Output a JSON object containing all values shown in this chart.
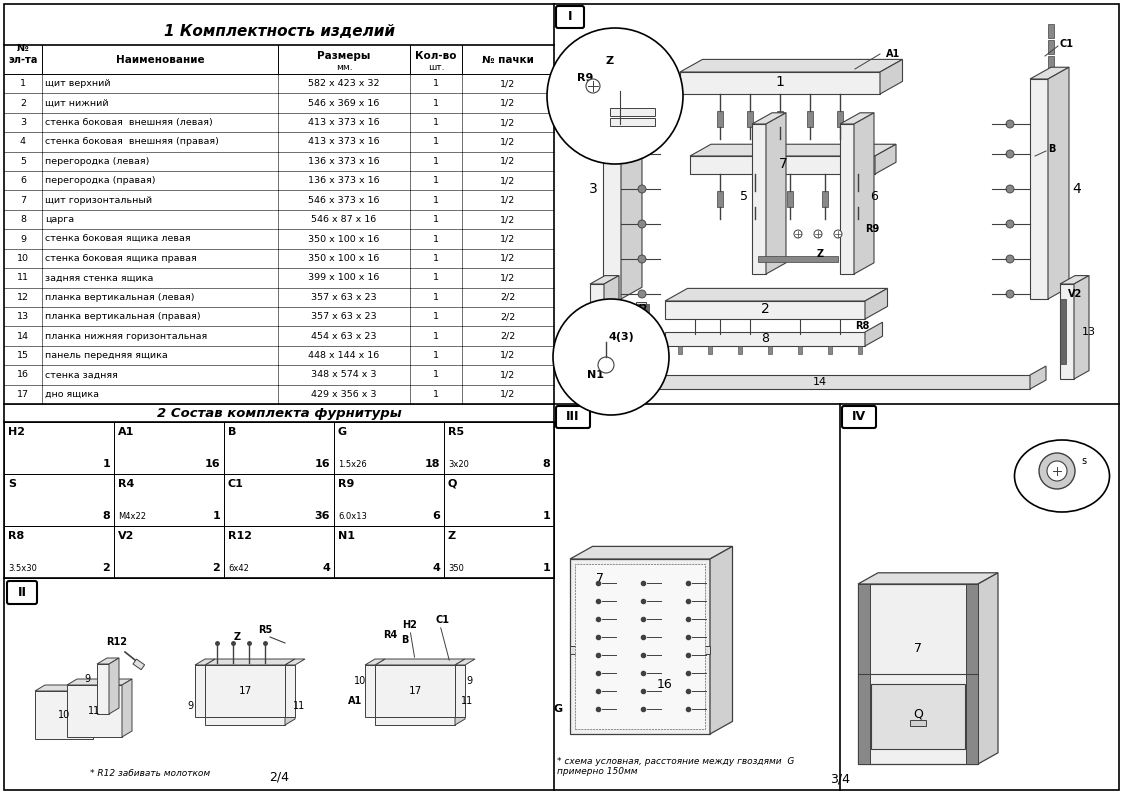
{
  "page_bg": "#ffffff",
  "title1": "1 Комплектность изделий",
  "title2": "2 Состав комплекта фурнитуры",
  "table_rows": [
    [
      "1",
      "щит верхний",
      "582 х 423 х 32",
      "1",
      "1/2"
    ],
    [
      "2",
      "щит нижний",
      "546 х 369 х 16",
      "1",
      "1/2"
    ],
    [
      "3",
      "стенка боковая  внешняя (левая)",
      "413 х 373 х 16",
      "1",
      "1/2"
    ],
    [
      "4",
      "стенка боковая  внешняя (правая)",
      "413 х 373 х 16",
      "1",
      "1/2"
    ],
    [
      "5",
      "перегородка (левая)",
      "136 х 373 х 16",
      "1",
      "1/2"
    ],
    [
      "6",
      "перегородка (правая)",
      "136 х 373 х 16",
      "1",
      "1/2"
    ],
    [
      "7",
      "щит горизонтальный",
      "546 х 373 х 16",
      "1",
      "1/2"
    ],
    [
      "8",
      "царга",
      "546 х 87 х 16",
      "1",
      "1/2"
    ],
    [
      "9",
      "стенка боковая ящика левая",
      "350 х 100 х 16",
      "1",
      "1/2"
    ],
    [
      "10",
      "стенка боковая ящика правая",
      "350 х 100 х 16",
      "1",
      "1/2"
    ],
    [
      "11",
      "задняя стенка ящика",
      "399 х 100 х 16",
      "1",
      "1/2"
    ],
    [
      "12",
      "планка вертикальная (левая)",
      "357 х 63 х 23",
      "1",
      "2/2"
    ],
    [
      "13",
      "планка вертикальная (правая)",
      "357 х 63 х 23",
      "1",
      "2/2"
    ],
    [
      "14",
      "планка нижняя горизонтальная",
      "454 х 63 х 23",
      "1",
      "2/2"
    ],
    [
      "15",
      "панель передняя ящика",
      "448 х 144 х 16",
      "1",
      "1/2"
    ],
    [
      "16",
      "стенка задняя",
      "348 х 574 х 3",
      "1",
      "1/2"
    ],
    [
      "17",
      "дно ящика",
      "429 х 356 х 3",
      "1",
      "1/2"
    ]
  ],
  "hw_rows": [
    [
      [
        "H2",
        "1",
        ""
      ],
      [
        "A1",
        "16",
        ""
      ],
      [
        "B",
        "16",
        ""
      ],
      [
        "G",
        "18",
        "1.5х26"
      ],
      [
        "R5",
        "8",
        "3х20"
      ]
    ],
    [
      [
        "S",
        "8",
        ""
      ],
      [
        "R4",
        "1",
        "M4х22"
      ],
      [
        "C1",
        "36",
        ""
      ],
      [
        "R9",
        "6",
        "6.0х13"
      ],
      [
        "Q",
        "1",
        ""
      ]
    ],
    [
      [
        "R8",
        "2",
        "3.5х30"
      ],
      [
        "V2",
        "2",
        ""
      ],
      [
        "R12",
        "4",
        "6х42"
      ],
      [
        "N1",
        "4",
        ""
      ],
      [
        "Z",
        "1",
        "350"
      ]
    ]
  ],
  "note_ii": "* R12 забивать молотком",
  "note_iii": "* схема условная, расстояние между гвоздями  G\nпримерно 150мм",
  "page_left": "2/4",
  "page_right": "3/4"
}
